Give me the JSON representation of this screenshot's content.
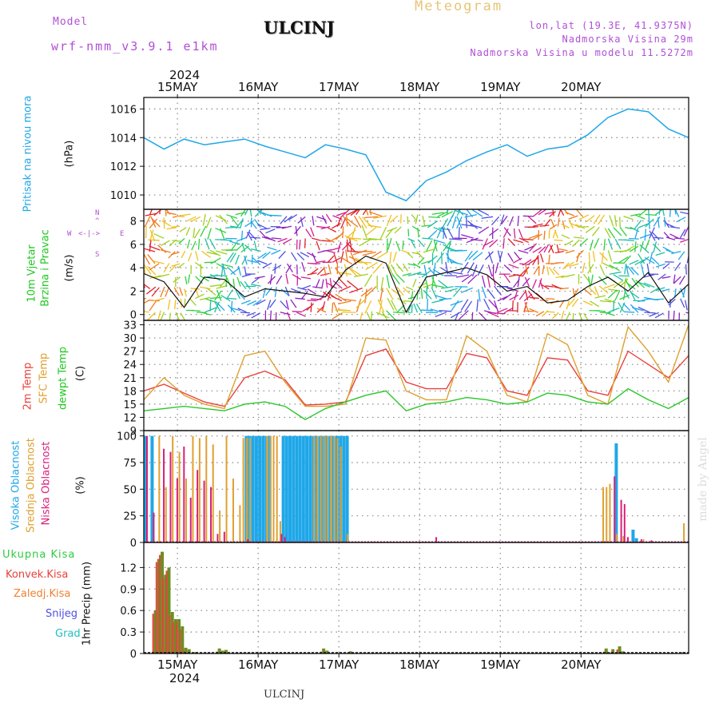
{
  "header": {
    "model_label": "Model",
    "model_name": "wrf-nmm_v3.9.1 e1km",
    "station": "ULCINJ",
    "meteogram": "Meteogram",
    "lonlat": "lon,lat (19.3E, 41.9375N)",
    "elev": "Nadmorska Visina 29m",
    "elev_model": "Nadmorska Visina u modelu 11.5272m",
    "year_top": "2024",
    "year_bottom": "2024",
    "footer_station": "ULCINJ",
    "credit": "made by Angel"
  },
  "days": [
    "15MAY",
    "16MAY",
    "17MAY",
    "18MAY",
    "19MAY",
    "20MAY"
  ],
  "panel_labels": {
    "pressure": [
      "Pritisak na nivou mora",
      "(hPa)"
    ],
    "wind": [
      "10m Vjetar",
      "Brzina i Pravac",
      "(m/s)"
    ],
    "compass": [
      "W",
      "<-|->",
      "E",
      "N",
      "^",
      "S"
    ],
    "temp": [
      "2m Temp",
      "SFC Temp",
      "dewpt Temp",
      "(C)"
    ],
    "cloud": [
      "Visoka Oblacnost",
      "Srednja Oblacnost",
      "Niska Oblacnost",
      "(%)"
    ],
    "precip": [
      "Ukupna Kisa",
      "Konvek.Kisa",
      "Zaledj.Kisa",
      "Snijeg",
      "Grad",
      "1hr Precip (mm)"
    ]
  },
  "colors": {
    "pressure": "#1fa7e8",
    "temp2m": "#e8413c",
    "sfc": "#e0a030",
    "dew": "#28c828",
    "high_cloud": "#1fa7e8",
    "mid_cloud": "#e0a030",
    "low_cloud": "#d8207a",
    "total_rain": "#2ecc40",
    "conv_rain": "#e8413c",
    "frz_rain": "#f08030",
    "snow": "#5050e0",
    "hail": "#20c0c0",
    "precip_bar": "#6b8e23"
  },
  "chart_data": [
    {
      "type": "line",
      "name": "pressure",
      "ylabel": "(hPa)",
      "ylim": [
        1009,
        1016.8
      ],
      "yticks": [
        1010,
        1012,
        1014,
        1016
      ],
      "x_hours": [
        0,
        6,
        12,
        18,
        24,
        30,
        36,
        42,
        48,
        54,
        60,
        66,
        72,
        78,
        84,
        90,
        96,
        102,
        108,
        114,
        120,
        126,
        132,
        138,
        144,
        150,
        156,
        162
      ],
      "values": [
        1014.0,
        1013.2,
        1013.9,
        1013.5,
        1013.7,
        1013.9,
        1013.4,
        1013.0,
        1012.6,
        1013.5,
        1013.2,
        1012.8,
        1010.2,
        1009.6,
        1011.0,
        1011.6,
        1012.4,
        1013.0,
        1013.5,
        1012.7,
        1013.2,
        1013.4,
        1014.2,
        1015.4,
        1016.0,
        1015.8,
        1014.6,
        1014.0
      ]
    },
    {
      "type": "line",
      "name": "wind",
      "ylabel": "(m/s)",
      "ylim": [
        -0.5,
        9
      ],
      "yticks": [
        0,
        2,
        4,
        6,
        8
      ],
      "x_hours": [
        0,
        6,
        12,
        18,
        24,
        30,
        36,
        42,
        48,
        54,
        60,
        66,
        72,
        78,
        84,
        90,
        96,
        102,
        108,
        114,
        120,
        126,
        132,
        138,
        144,
        150,
        156,
        162
      ],
      "values": [
        3.5,
        2.8,
        0.6,
        3.2,
        3.0,
        1.5,
        2.2,
        2.0,
        1.8,
        1.5,
        3.8,
        5.0,
        4.4,
        0.2,
        3.2,
        3.6,
        4.0,
        3.4,
        2.0,
        2.4,
        1.0,
        1.2,
        2.4,
        3.2,
        2.0,
        3.6,
        1.0,
        2.6
      ]
    },
    {
      "type": "line",
      "name": "temperature",
      "ylabel": "(C)",
      "ylim": [
        9,
        34
      ],
      "yticks": [
        9,
        12,
        15,
        18,
        21,
        24,
        27,
        30,
        33
      ],
      "x_hours": [
        0,
        6,
        12,
        18,
        24,
        30,
        36,
        42,
        48,
        54,
        60,
        66,
        72,
        78,
        84,
        90,
        96,
        102,
        108,
        114,
        120,
        126,
        132,
        138,
        144,
        150,
        156,
        162
      ],
      "series": [
        {
          "name": "2m Temp",
          "values": [
            18,
            19.5,
            17.5,
            15.5,
            14.5,
            21,
            22.5,
            20.5,
            14.8,
            15,
            15.5,
            26,
            27.5,
            20,
            18.5,
            18.5,
            26.5,
            25.5,
            18,
            17,
            25.5,
            25,
            18,
            17,
            27,
            24,
            21,
            26
          ]
        },
        {
          "name": "SFC Temp",
          "values": [
            16,
            21,
            17,
            15,
            14,
            26,
            27,
            20,
            14.5,
            14.5,
            15,
            30,
            29.5,
            18,
            16,
            16,
            30.5,
            27,
            17,
            15.5,
            31,
            28.5,
            17,
            15,
            32.5,
            27,
            20,
            33
          ]
        },
        {
          "name": "dewpt Temp",
          "values": [
            13.5,
            14,
            14.5,
            14,
            13.5,
            15,
            15.5,
            14.5,
            11.5,
            14,
            15.5,
            17,
            18,
            13.5,
            15,
            15.5,
            16.5,
            16,
            15,
            15.5,
            17.5,
            17,
            15.5,
            15,
            18.5,
            16,
            14,
            16.5
          ]
        }
      ]
    },
    {
      "type": "bar",
      "name": "cloud",
      "ylabel": "(%)",
      "ylim": [
        0,
        105
      ],
      "yticks": [
        0,
        25,
        50,
        75,
        100
      ],
      "series": [
        {
          "name": "Visoka Oblacnost",
          "points": [
            [
              0,
              100
            ],
            [
              2,
              100
            ],
            [
              30,
              100
            ],
            [
              31,
              100
            ],
            [
              32,
              100
            ],
            [
              33,
              100
            ],
            [
              34,
              100
            ],
            [
              35,
              100
            ],
            [
              36,
              100
            ],
            [
              37,
              100
            ],
            [
              41,
              100
            ],
            [
              42,
              100
            ],
            [
              43,
              100
            ],
            [
              44,
              100
            ],
            [
              45,
              100
            ],
            [
              46,
              100
            ],
            [
              47,
              100
            ],
            [
              48,
              100
            ],
            [
              49,
              100
            ],
            [
              50,
              100
            ],
            [
              51,
              100
            ],
            [
              52,
              100
            ],
            [
              53,
              100
            ],
            [
              54,
              100
            ],
            [
              55,
              100
            ],
            [
              56,
              100
            ],
            [
              57,
              100
            ],
            [
              58,
              100
            ],
            [
              59,
              100
            ],
            [
              60,
              100
            ],
            [
              140,
              93
            ],
            [
              145,
              12
            ],
            [
              146,
              4
            ]
          ]
        },
        {
          "name": "Srednja Oblacnost",
          "points": [
            [
              4,
              100
            ],
            [
              6,
              52
            ],
            [
              8,
              100
            ],
            [
              10,
              85
            ],
            [
              12,
              60
            ],
            [
              14,
              100
            ],
            [
              16,
              98
            ],
            [
              18,
              100
            ],
            [
              20,
              92
            ],
            [
              22,
              30
            ],
            [
              24,
              100
            ],
            [
              26,
              60
            ],
            [
              28,
              35
            ],
            [
              29,
              98
            ],
            [
              30,
              98
            ],
            [
              31,
              98
            ],
            [
              36,
              100
            ],
            [
              37,
              100
            ],
            [
              38,
              100
            ],
            [
              39,
              100
            ],
            [
              40,
              20
            ],
            [
              50,
              100
            ],
            [
              51,
              100
            ],
            [
              52,
              100
            ],
            [
              53,
              100
            ],
            [
              54,
              100
            ],
            [
              55,
              100
            ],
            [
              56,
              100
            ],
            [
              57,
              98
            ],
            [
              58,
              90
            ],
            [
              60,
              8
            ],
            [
              136,
              52
            ],
            [
              137,
              52
            ],
            [
              138,
              55
            ],
            [
              140,
              8
            ],
            [
              142,
              6
            ],
            [
              148,
              3
            ],
            [
              160,
              18
            ]
          ]
        },
        {
          "name": "Niska Oblacnost",
          "points": [
            [
              0,
              100
            ],
            [
              2,
              28
            ],
            [
              5,
              88
            ],
            [
              7,
              85
            ],
            [
              9,
              60
            ],
            [
              11,
              90
            ],
            [
              13,
              42
            ],
            [
              15,
              68
            ],
            [
              17,
              58
            ],
            [
              19,
              52
            ],
            [
              21,
              8
            ],
            [
              23,
              10
            ],
            [
              30,
              3
            ],
            [
              40,
              8
            ],
            [
              41,
              5
            ],
            [
              86,
              5
            ],
            [
              139,
              62
            ],
            [
              141,
              40
            ],
            [
              142,
              36
            ],
            [
              143,
              5
            ],
            [
              147,
              3
            ],
            [
              150,
              2
            ]
          ]
        }
      ]
    },
    {
      "type": "bar",
      "name": "precip",
      "ylabel": "1hr Precip (mm)",
      "ylim": [
        0,
        1.55
      ],
      "yticks": [
        0,
        0.3,
        0.6,
        0.9,
        1.2
      ],
      "points": [
        [
          3,
          0.6
        ],
        [
          4,
          1.32
        ],
        [
          5,
          1.42
        ],
        [
          6,
          1.1
        ],
        [
          7,
          1.2
        ],
        [
          8,
          0.58
        ],
        [
          9,
          0.48
        ],
        [
          10,
          0.48
        ],
        [
          11,
          0.38
        ],
        [
          12,
          0.08
        ],
        [
          13,
          0.06
        ],
        [
          15,
          0.02
        ],
        [
          22,
          0.07
        ],
        [
          23,
          0.04
        ],
        [
          24,
          0.05
        ],
        [
          53,
          0.07
        ],
        [
          54,
          0.04
        ],
        [
          61,
          0.03
        ],
        [
          137,
          0.07
        ],
        [
          139,
          0.06
        ],
        [
          141,
          0.1
        ],
        [
          142,
          0.03
        ],
        [
          160,
          0.02
        ]
      ]
    }
  ]
}
